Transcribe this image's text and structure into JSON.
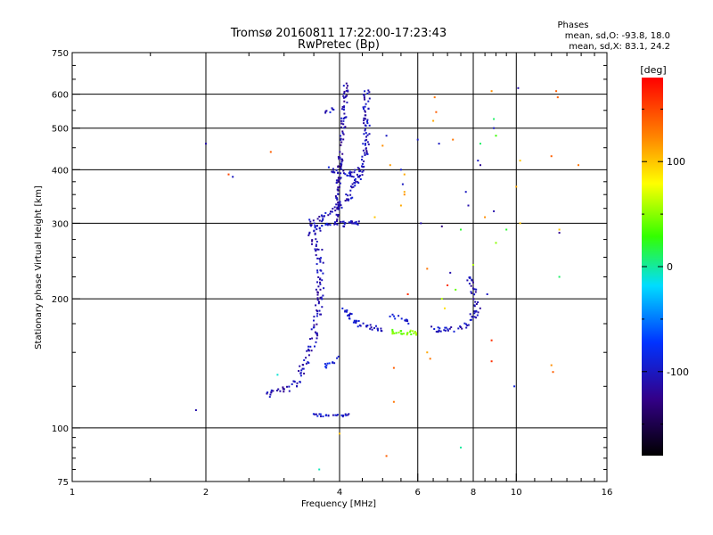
{
  "header": {
    "title": "Tromsø 20160811 17:22:00-17:23:43",
    "subtitle": "RwPretec (Bp)",
    "stats_title": "Phases",
    "stats_o": "mean, sd,O: -93.8, 18.0",
    "stats_x": "mean, sd,X: 83.1, 24.2"
  },
  "colorbar": {
    "label": "[deg]",
    "range": [
      -180,
      180
    ],
    "ticks": [
      "100",
      "0",
      "-100"
    ],
    "tick_values": [
      100,
      0,
      -100
    ]
  },
  "chart_data": {
    "type": "scatter",
    "title": "Tromsø 20160811 17:22:00-17:23:43",
    "subtitle": "RwPretec (Bp)",
    "xlabel": "Frequency [MHz]",
    "ylabel": "Stationary phase Virtual Height [km]",
    "x_scale": "log",
    "y_scale": "log",
    "xlim": [
      1,
      16
    ],
    "ylim": [
      75,
      750
    ],
    "x_ticks": [
      1,
      2,
      4,
      6,
      8,
      10,
      16
    ],
    "y_ticks": [
      75,
      100,
      200,
      300,
      400,
      500,
      600,
      750
    ],
    "x_grid": [
      2,
      4,
      6,
      8,
      10
    ],
    "y_grid": [
      100,
      200,
      300,
      400,
      500,
      600
    ],
    "grid": true,
    "color_variable": "phase [deg]",
    "traces": [
      {
        "points": [
          [
            2.7,
            119
          ],
          [
            2.8,
            120
          ],
          [
            2.9,
            121
          ],
          [
            3.0,
            123
          ],
          [
            3.1,
            125
          ],
          [
            3.2,
            128
          ],
          [
            3.25,
            132
          ],
          [
            3.3,
            137
          ],
          [
            3.35,
            142
          ],
          [
            3.4,
            148
          ],
          [
            3.45,
            155
          ],
          [
            3.5,
            162
          ],
          [
            3.52,
            170
          ],
          [
            3.55,
            178
          ],
          [
            3.58,
            188
          ],
          [
            3.6,
            200
          ],
          [
            3.62,
            215
          ],
          [
            3.63,
            232
          ],
          [
            3.62,
            248
          ],
          [
            3.58,
            262
          ],
          [
            3.5,
            275
          ],
          [
            3.45,
            290
          ],
          [
            3.5,
            305
          ]
        ],
        "phase": -108,
        "spread": 0.04,
        "density": 5
      },
      {
        "points": [
          [
            3.5,
            290
          ],
          [
            3.7,
            295
          ],
          [
            3.9,
            300
          ],
          [
            4.1,
            298
          ],
          [
            4.3,
            300
          ],
          [
            4.5,
            305
          ]
        ],
        "phase": -102,
        "spread": 0.03,
        "density": 6
      },
      {
        "points": [
          [
            3.5,
            300
          ],
          [
            3.8,
            318
          ],
          [
            4.0,
            330
          ],
          [
            4.2,
            345
          ],
          [
            4.4,
            380
          ],
          [
            4.55,
            420
          ],
          [
            4.6,
            480
          ],
          [
            4.6,
            560
          ],
          [
            4.6,
            610
          ]
        ],
        "phase": -105,
        "spread": 0.035,
        "density": 6
      },
      {
        "points": [
          [
            3.8,
            400
          ],
          [
            4.0,
            400
          ],
          [
            4.2,
            390
          ],
          [
            4.4,
            395
          ]
        ],
        "phase": -100,
        "spread": 0.03,
        "density": 6
      },
      {
        "points": [
          [
            3.95,
            300
          ],
          [
            4.0,
            400
          ],
          [
            4.05,
            470
          ],
          [
            4.1,
            540
          ],
          [
            4.12,
            600
          ],
          [
            4.15,
            640
          ]
        ],
        "phase": -110,
        "spread": 0.025,
        "density": 5
      },
      {
        "points": [
          [
            3.65,
            545
          ],
          [
            3.8,
            550
          ],
          [
            3.9,
            560
          ]
        ],
        "phase": -100,
        "spread": 0.02,
        "density": 4
      },
      {
        "points": [
          [
            4.1,
            190
          ],
          [
            4.3,
            177
          ],
          [
            4.6,
            172
          ],
          [
            5.0,
            170
          ]
        ],
        "phase": -100,
        "spread": 0.025,
        "density": 6
      },
      {
        "points": [
          [
            5.2,
            185
          ],
          [
            5.4,
            182
          ],
          [
            5.6,
            180
          ],
          [
            5.7,
            175
          ]
        ],
        "phase": -95,
        "spread": 0.03,
        "density": 4
      },
      {
        "points": [
          [
            5.2,
            168
          ],
          [
            5.6,
            167
          ],
          [
            6.0,
            166
          ]
        ],
        "phase": 48,
        "spread": 0.025,
        "density": 6
      },
      {
        "points": [
          [
            6.4,
            170
          ],
          [
            7.0,
            170
          ],
          [
            7.6,
            170
          ],
          [
            8.2,
            190
          ],
          [
            8.0,
            210
          ],
          [
            7.8,
            225
          ]
        ],
        "phase": -105,
        "spread": 0.03,
        "density": 5
      },
      {
        "points": [
          [
            3.5,
            107
          ],
          [
            3.7,
            107
          ],
          [
            4.0,
            107
          ],
          [
            4.2,
            107
          ]
        ],
        "phase": -100,
        "spread": 0.015,
        "density": 5
      },
      {
        "points": [
          [
            3.55,
            135
          ],
          [
            3.8,
            140
          ],
          [
            4.0,
            145
          ]
        ],
        "phase": -85,
        "spread": 0.04,
        "density": 3
      }
    ],
    "points": [
      {
        "x": 1.9,
        "y": 110,
        "phase": -110
      },
      {
        "x": 2.0,
        "y": 460,
        "phase": -110
      },
      {
        "x": 2.25,
        "y": 390,
        "phase": 150
      },
      {
        "x": 2.3,
        "y": 385,
        "phase": -100
      },
      {
        "x": 2.8,
        "y": 440,
        "phase": 140
      },
      {
        "x": 2.9,
        "y": 133,
        "phase": -10
      },
      {
        "x": 3.6,
        "y": 80,
        "phase": -5
      },
      {
        "x": 4.0,
        "y": 97,
        "phase": 100
      },
      {
        "x": 4.3,
        "y": 385,
        "phase": -100
      },
      {
        "x": 4.8,
        "y": 310,
        "phase": 100
      },
      {
        "x": 5.0,
        "y": 455,
        "phase": 120
      },
      {
        "x": 5.1,
        "y": 480,
        "phase": -100
      },
      {
        "x": 5.2,
        "y": 410,
        "phase": 115
      },
      {
        "x": 5.3,
        "y": 115,
        "phase": 130
      },
      {
        "x": 5.3,
        "y": 138,
        "phase": 140
      },
      {
        "x": 5.5,
        "y": 330,
        "phase": 110
      },
      {
        "x": 5.55,
        "y": 370,
        "phase": -100
      },
      {
        "x": 5.6,
        "y": 350,
        "phase": 120
      },
      {
        "x": 5.6,
        "y": 355,
        "phase": 110
      },
      {
        "x": 5.6,
        "y": 390,
        "phase": 110
      },
      {
        "x": 5.5,
        "y": 400,
        "phase": -95
      },
      {
        "x": 5.1,
        "y": 86,
        "phase": 140
      },
      {
        "x": 5.7,
        "y": 205,
        "phase": 160
      },
      {
        "x": 6.0,
        "y": 470,
        "phase": -100
      },
      {
        "x": 6.1,
        "y": 300,
        "phase": -110
      },
      {
        "x": 6.3,
        "y": 150,
        "phase": 110
      },
      {
        "x": 6.3,
        "y": 235,
        "phase": 130
      },
      {
        "x": 6.4,
        "y": 145,
        "phase": 130
      },
      {
        "x": 6.5,
        "y": 520,
        "phase": 110
      },
      {
        "x": 6.55,
        "y": 590,
        "phase": 130
      },
      {
        "x": 6.6,
        "y": 545,
        "phase": 140
      },
      {
        "x": 6.7,
        "y": 460,
        "phase": -100
      },
      {
        "x": 6.8,
        "y": 295,
        "phase": -130
      },
      {
        "x": 6.8,
        "y": 200,
        "phase": 60
      },
      {
        "x": 6.9,
        "y": 190,
        "phase": 90
      },
      {
        "x": 7.0,
        "y": 215,
        "phase": 160
      },
      {
        "x": 7.1,
        "y": 230,
        "phase": -110
      },
      {
        "x": 7.2,
        "y": 470,
        "phase": 130
      },
      {
        "x": 7.3,
        "y": 210,
        "phase": 40
      },
      {
        "x": 7.5,
        "y": 290,
        "phase": 20
      },
      {
        "x": 7.5,
        "y": 90,
        "phase": 0
      },
      {
        "x": 7.7,
        "y": 355,
        "phase": -100
      },
      {
        "x": 7.8,
        "y": 330,
        "phase": -110
      },
      {
        "x": 8.0,
        "y": 240,
        "phase": 60
      },
      {
        "x": 8.2,
        "y": 420,
        "phase": -100
      },
      {
        "x": 8.3,
        "y": 410,
        "phase": -120
      },
      {
        "x": 8.3,
        "y": 460,
        "phase": 10
      },
      {
        "x": 8.5,
        "y": 310,
        "phase": 120
      },
      {
        "x": 8.6,
        "y": 205,
        "phase": -100
      },
      {
        "x": 8.8,
        "y": 610,
        "phase": 120
      },
      {
        "x": 8.8,
        "y": 160,
        "phase": 160
      },
      {
        "x": 8.8,
        "y": 143,
        "phase": 160
      },
      {
        "x": 8.9,
        "y": 525,
        "phase": 10
      },
      {
        "x": 8.9,
        "y": 500,
        "phase": -100
      },
      {
        "x": 8.9,
        "y": 320,
        "phase": -110
      },
      {
        "x": 9.0,
        "y": 480,
        "phase": 30
      },
      {
        "x": 9.0,
        "y": 270,
        "phase": 50
      },
      {
        "x": 9.5,
        "y": 290,
        "phase": 20
      },
      {
        "x": 9.9,
        "y": 125,
        "phase": -90
      },
      {
        "x": 10.0,
        "y": 365,
        "phase": 110
      },
      {
        "x": 10.1,
        "y": 620,
        "phase": -110
      },
      {
        "x": 10.2,
        "y": 420,
        "phase": 100
      },
      {
        "x": 10.2,
        "y": 300,
        "phase": 100
      },
      {
        "x": 12.0,
        "y": 430,
        "phase": 140
      },
      {
        "x": 12.0,
        "y": 140,
        "phase": 120
      },
      {
        "x": 12.1,
        "y": 135,
        "phase": 140
      },
      {
        "x": 12.3,
        "y": 610,
        "phase": 140
      },
      {
        "x": 12.4,
        "y": 590,
        "phase": 140
      },
      {
        "x": 12.5,
        "y": 285,
        "phase": -120
      },
      {
        "x": 12.5,
        "y": 290,
        "phase": 100
      },
      {
        "x": 12.5,
        "y": 225,
        "phase": 10
      },
      {
        "x": 13.8,
        "y": 410,
        "phase": 130
      }
    ]
  }
}
